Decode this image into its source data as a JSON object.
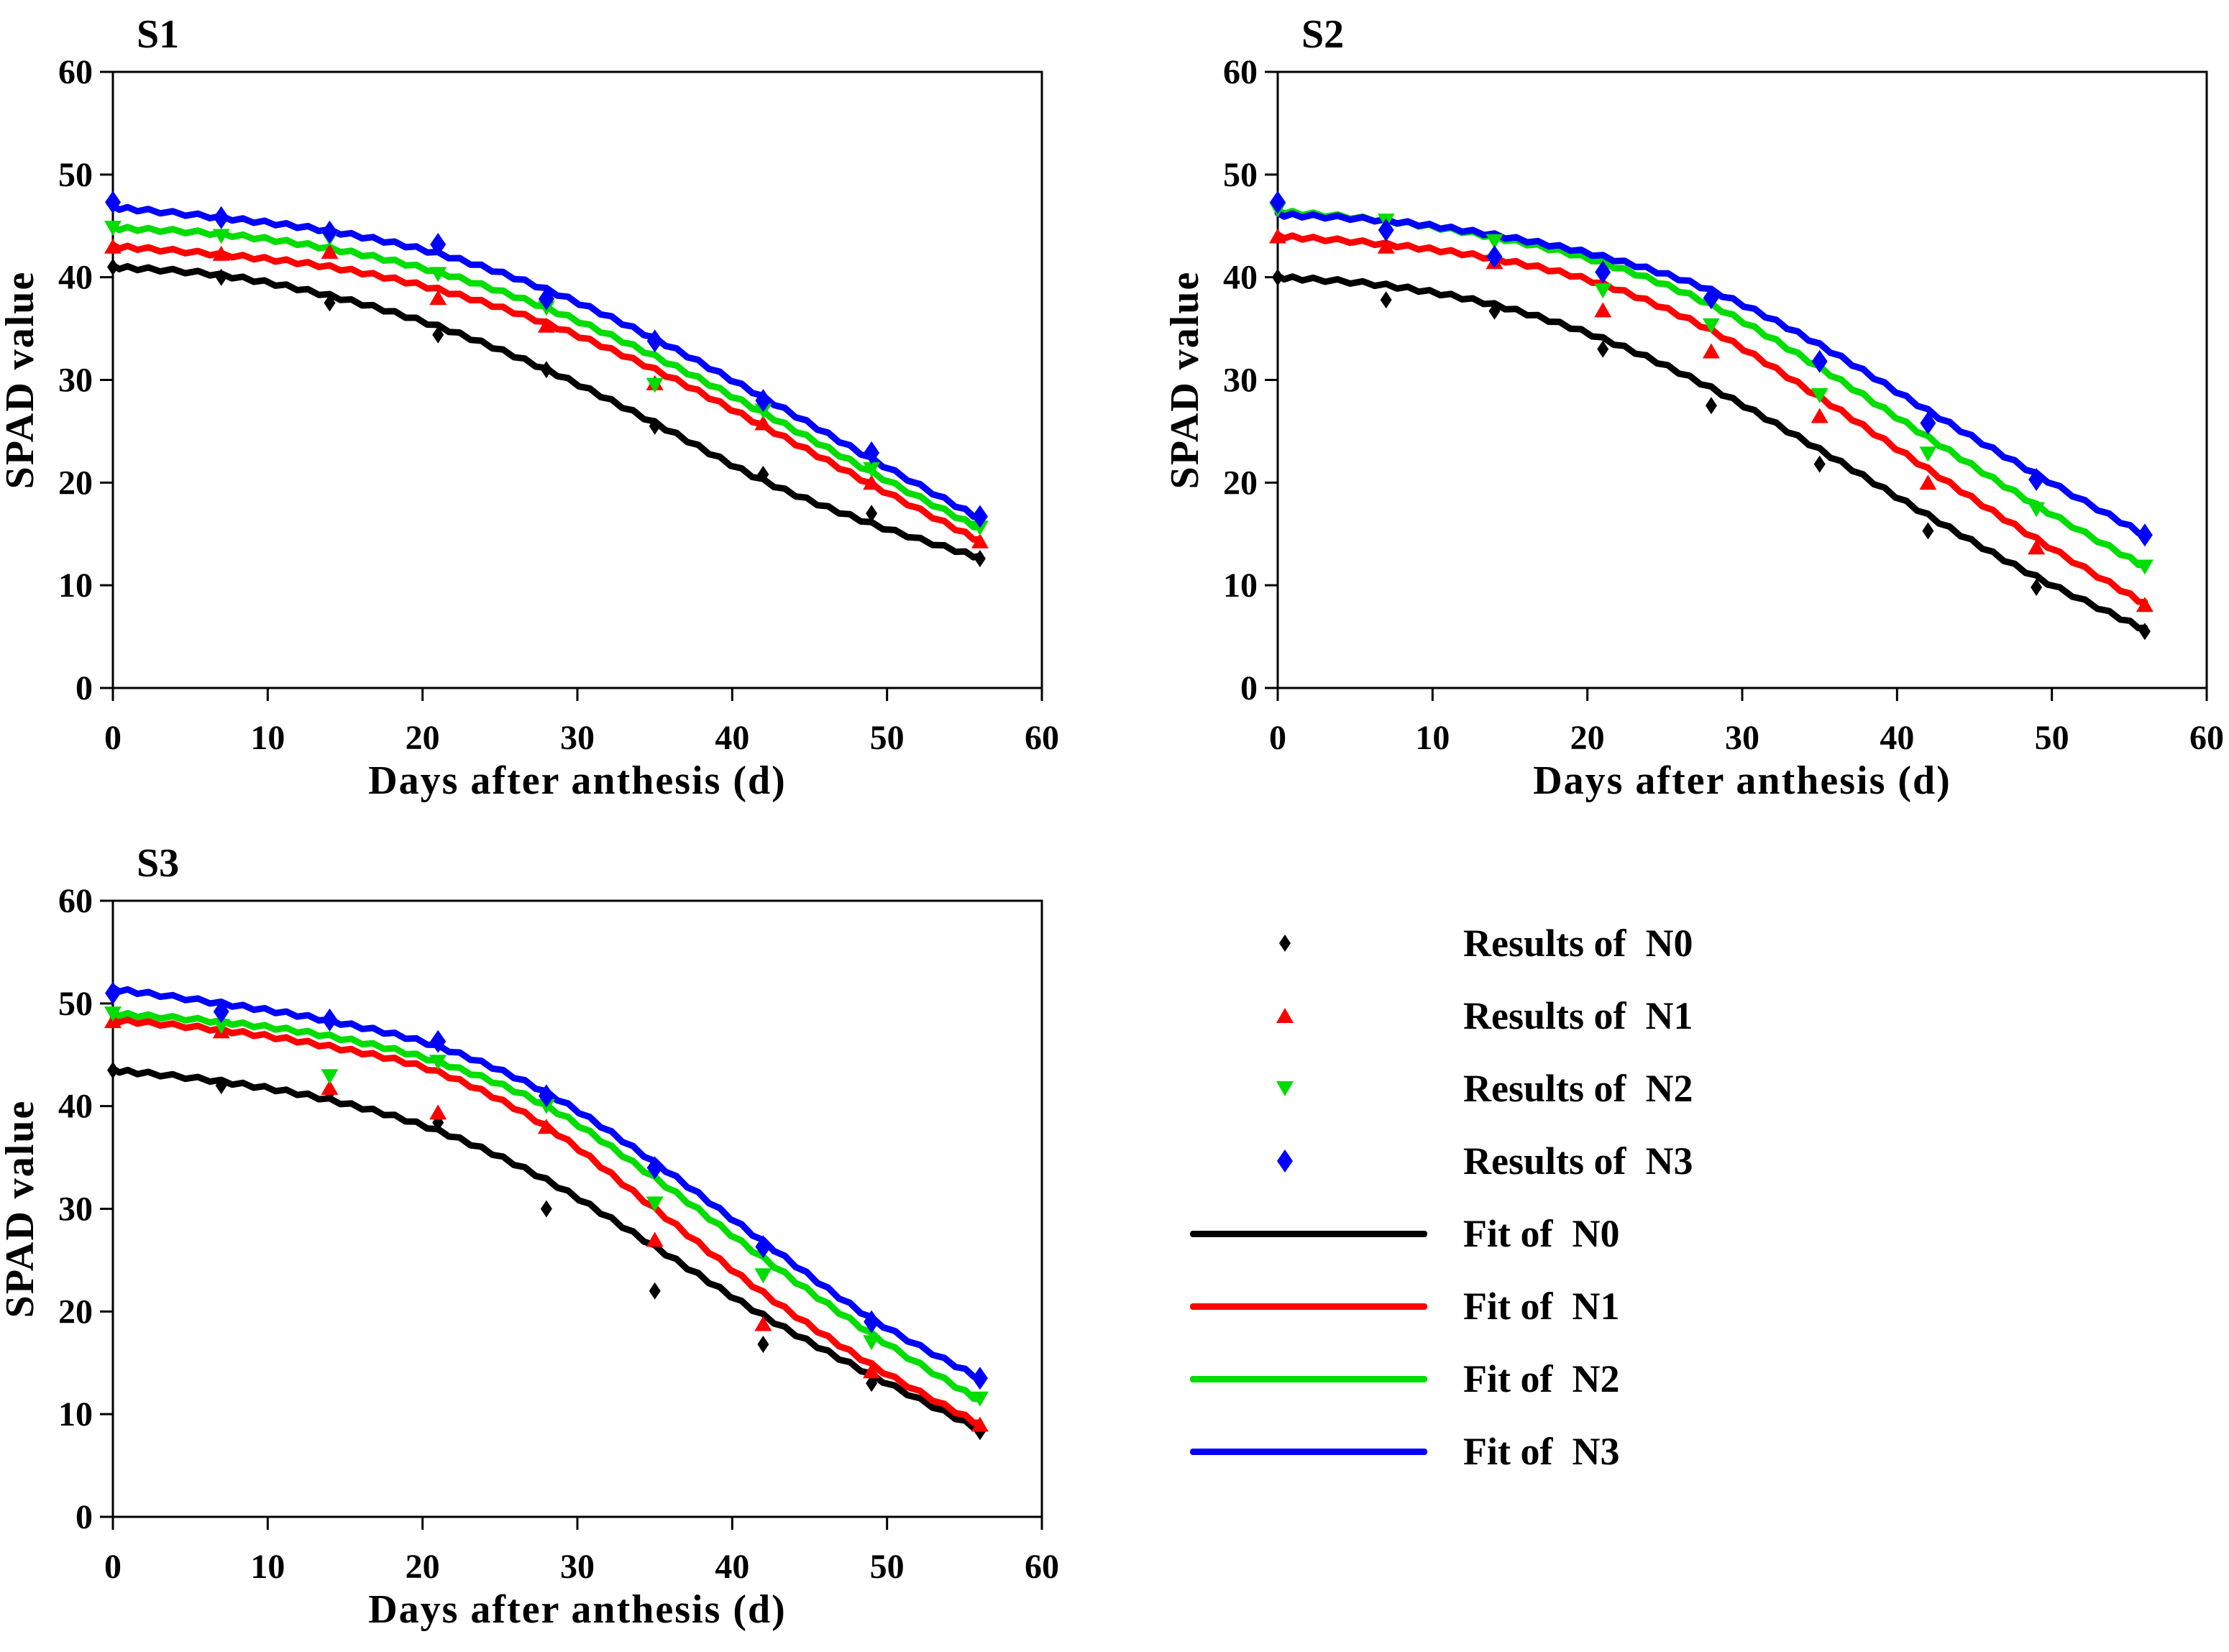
{
  "figure": {
    "background": "#FFFFFF",
    "grid": "off",
    "legend_position": "bottom-right-quadrant"
  },
  "colors": {
    "N0": "#000000",
    "N1": "#FF0000",
    "N2": "#00DD00",
    "N3": "#0000FF"
  },
  "legend": {
    "items": [
      {
        "label": "Results of  N0",
        "type": "marker",
        "marker": "diamond-small",
        "treatment": "N0"
      },
      {
        "label": "Results of  N1",
        "type": "marker",
        "marker": "triangle-up",
        "treatment": "N1"
      },
      {
        "label": "Results of  N2",
        "type": "marker",
        "marker": "triangle-down",
        "treatment": "N2"
      },
      {
        "label": "Results of  N3",
        "type": "marker",
        "marker": "diamond",
        "treatment": "N3"
      },
      {
        "label": "Fit of  N0",
        "type": "line",
        "treatment": "N0"
      },
      {
        "label": "Fit of  N1",
        "type": "line",
        "treatment": "N1"
      },
      {
        "label": "Fit of  N2",
        "type": "line",
        "treatment": "N2"
      },
      {
        "label": "Fit of  N3",
        "type": "line",
        "treatment": "N3"
      }
    ]
  },
  "chart_data": [
    {
      "type": "line",
      "title": "S1",
      "xlabel": "Days after anthesis (d)",
      "ylabel": "SPAD value",
      "xlim": [
        0,
        60
      ],
      "ylim": [
        0,
        60
      ],
      "xticks": [
        0,
        10,
        20,
        30,
        40,
        50,
        60
      ],
      "yticks": [
        0,
        10,
        20,
        30,
        40,
        50,
        60
      ],
      "x": [
        0,
        7,
        14,
        21,
        28,
        35,
        42,
        49,
        56
      ],
      "series": [
        {
          "name": "Fit of N0",
          "role": "fit",
          "treatment": "N0",
          "values": [
            41,
            40.2,
            38.2,
            35.2,
            31,
            25.8,
            20.2,
            16,
            12.7
          ]
        },
        {
          "name": "Fit of N1",
          "role": "fit",
          "treatment": "N1",
          "values": [
            43,
            42.2,
            41,
            38.8,
            35.5,
            31,
            25.5,
            19.8,
            14.3
          ]
        },
        {
          "name": "Fit of N2",
          "role": "fit",
          "treatment": "N2",
          "values": [
            44.8,
            44.2,
            42.8,
            40.5,
            37,
            32.3,
            26.8,
            21,
            15.5
          ]
        },
        {
          "name": "Fit of N3",
          "role": "fit",
          "treatment": "N3",
          "values": [
            46.8,
            45.8,
            44.5,
            42.3,
            38.8,
            34,
            28.3,
            22.3,
            16.5
          ]
        },
        {
          "name": "Results of N0",
          "role": "results",
          "treatment": "N0",
          "marker": "diamond-small",
          "values": [
            41,
            40,
            37.5,
            34.4,
            31,
            25.5,
            20.8,
            17,
            12.6
          ]
        },
        {
          "name": "Results of N1",
          "role": "results",
          "treatment": "N1",
          "marker": "triangle-up",
          "values": [
            43,
            42.3,
            42.5,
            38,
            35.3,
            29.7,
            25.8,
            20,
            14.3
          ]
        },
        {
          "name": "Results of N2",
          "role": "results",
          "treatment": "N2",
          "marker": "triangle-down",
          "values": [
            44.8,
            44,
            43.8,
            40.3,
            37,
            29.5,
            27,
            21.3,
            15.6
          ]
        },
        {
          "name": "Results of N3",
          "role": "results",
          "treatment": "N3",
          "marker": "diamond",
          "values": [
            47.3,
            45.8,
            44.4,
            43.2,
            37.9,
            33.8,
            28,
            22.9,
            16.7
          ]
        }
      ]
    },
    {
      "type": "line",
      "title": "S2",
      "xlabel": "Days after anthesis (d)",
      "ylabel": "SPAD value",
      "xlim": [
        0,
        60
      ],
      "ylim": [
        0,
        60
      ],
      "xticks": [
        0,
        10,
        20,
        30,
        40,
        50,
        60
      ],
      "yticks": [
        0,
        10,
        20,
        30,
        40,
        50,
        60
      ],
      "x": [
        0,
        7,
        14,
        21,
        28,
        35,
        42,
        49,
        56
      ],
      "series": [
        {
          "name": "Fit of N0",
          "role": "fit",
          "treatment": "N0",
          "values": [
            40,
            39.2,
            37.3,
            34,
            29.2,
            23.2,
            16.8,
            10.8,
            5.7
          ]
        },
        {
          "name": "Fit of N1",
          "role": "fit",
          "treatment": "N1",
          "values": [
            44,
            43.2,
            41.8,
            39.3,
            34.8,
            28.3,
            21.3,
            14.5,
            8.2
          ]
        },
        {
          "name": "Fit of N2",
          "role": "fit",
          "treatment": "N2",
          "values": [
            46.4,
            45.5,
            43.9,
            41.4,
            37.3,
            31.2,
            24.4,
            17.8,
            11.8
          ]
        },
        {
          "name": "Fit of N3",
          "role": "fit",
          "treatment": "N3",
          "values": [
            46.1,
            45.5,
            44.1,
            42,
            38.7,
            33.4,
            27,
            20.8,
            14.9
          ]
        },
        {
          "name": "Results of N0",
          "role": "results",
          "treatment": "N0",
          "marker": "diamond-small",
          "values": [
            40,
            37.8,
            36.7,
            33,
            27.5,
            21.8,
            15.3,
            9.8,
            5.5
          ]
        },
        {
          "name": "Results of N1",
          "role": "results",
          "treatment": "N1",
          "marker": "triangle-up",
          "values": [
            44,
            43,
            41.5,
            36.8,
            32.8,
            26.5,
            20,
            13.7,
            8.1
          ]
        },
        {
          "name": "Results of N2",
          "role": "results",
          "treatment": "N2",
          "marker": "triangle-down",
          "values": [
            46.6,
            45.5,
            43.5,
            38.7,
            35.3,
            28.5,
            22.8,
            17.4,
            11.8
          ]
        },
        {
          "name": "Results of N3",
          "role": "results",
          "treatment": "N3",
          "marker": "diamond",
          "values": [
            47.3,
            44.6,
            42,
            40.5,
            38,
            31.8,
            25.8,
            20.3,
            14.9
          ]
        }
      ]
    },
    {
      "type": "line",
      "title": "S3",
      "xlabel": "Days after anthesis (d)",
      "ylabel": "SPAD value",
      "xlim": [
        0,
        60
      ],
      "ylim": [
        0,
        60
      ],
      "xticks": [
        0,
        10,
        20,
        30,
        40,
        50,
        60
      ],
      "yticks": [
        0,
        10,
        20,
        30,
        40,
        50,
        60
      ],
      "x": [
        0,
        7,
        14,
        21,
        28,
        35,
        42,
        49,
        56
      ],
      "series": [
        {
          "name": "Fit of N0",
          "role": "fit",
          "treatment": "N0",
          "values": [
            43.5,
            42.4,
            40.6,
            37.6,
            32.8,
            26.3,
            19.6,
            13.8,
            8.5
          ]
        },
        {
          "name": "Fit of N1",
          "role": "fit",
          "treatment": "N1",
          "values": [
            48.4,
            47.4,
            45.8,
            43.3,
            38,
            30,
            21.8,
            14.8,
            9
          ]
        },
        {
          "name": "Fit of N2",
          "role": "fit",
          "treatment": "N2",
          "values": [
            49,
            48.2,
            46.8,
            44.3,
            40,
            33,
            25.2,
            17.8,
            11.3
          ]
        },
        {
          "name": "Fit of N3",
          "role": "fit",
          "treatment": "N3",
          "values": [
            51.4,
            50,
            48.3,
            45.8,
            41.3,
            34.5,
            26.8,
            19.3,
            13.5
          ]
        },
        {
          "name": "Results of N0",
          "role": "results",
          "treatment": "N0",
          "marker": "diamond-small",
          "values": [
            43.5,
            42,
            41.3,
            38.4,
            30,
            22,
            16.8,
            13,
            8.3
          ]
        },
        {
          "name": "Results of N1",
          "role": "results",
          "treatment": "N1",
          "marker": "triangle-up",
          "values": [
            48.3,
            47.3,
            41.8,
            39.4,
            38,
            27,
            18.8,
            14.2,
            9
          ]
        },
        {
          "name": "Results of N2",
          "role": "results",
          "treatment": "N2",
          "marker": "triangle-down",
          "values": [
            49,
            47.8,
            42.9,
            44.3,
            40,
            30.5,
            23.5,
            17,
            11.5
          ]
        },
        {
          "name": "Results of N3",
          "role": "results",
          "treatment": "N3",
          "marker": "diamond",
          "values": [
            51,
            49.2,
            48.4,
            46.3,
            41,
            34,
            26.3,
            19,
            13.5
          ]
        }
      ]
    }
  ]
}
